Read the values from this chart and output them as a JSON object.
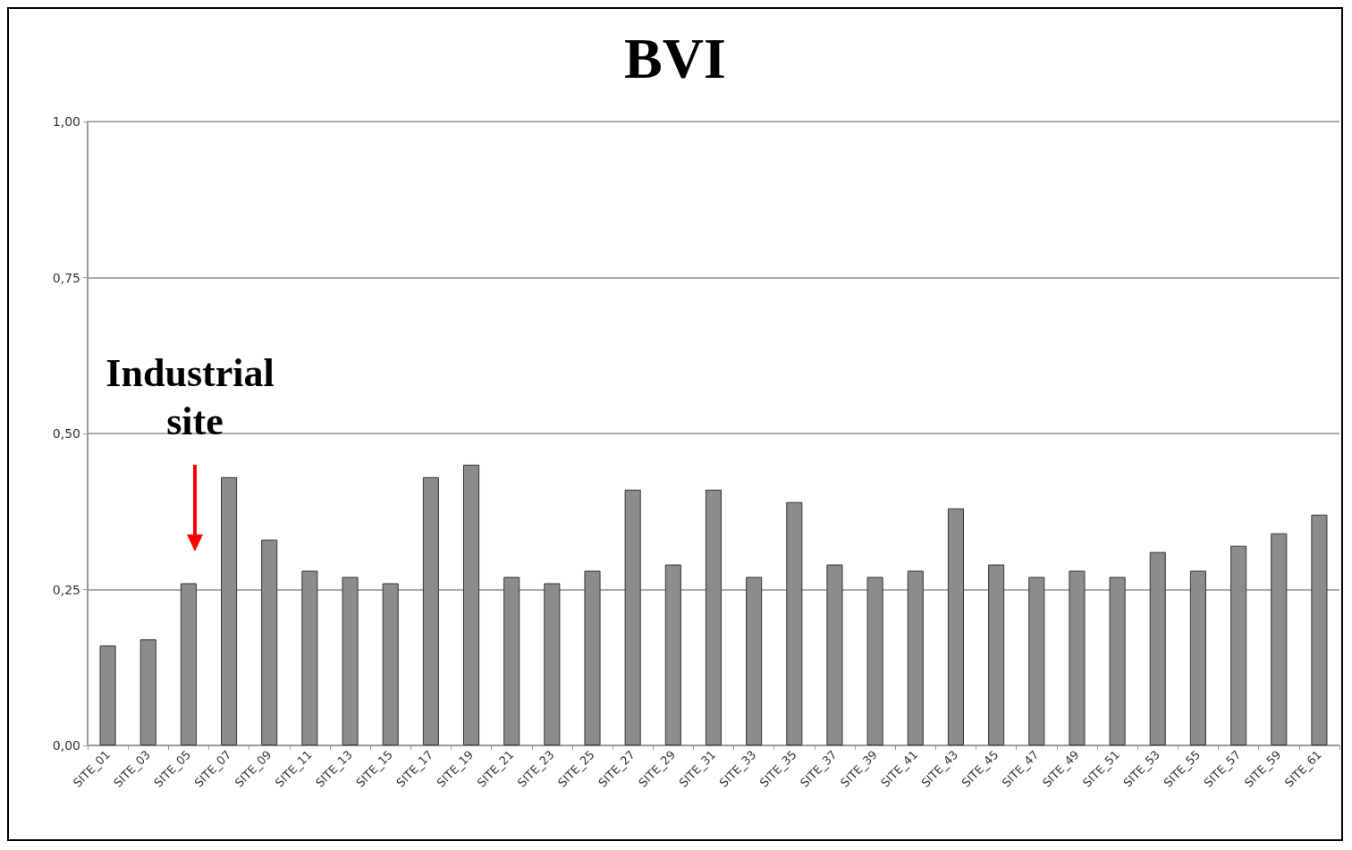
{
  "chart_data": {
    "type": "bar",
    "title": "BVI",
    "categories": [
      "SITE_01",
      "SITE_03",
      "SITE_05",
      "SITE_07",
      "SITE_09",
      "SITE_11",
      "SITE_13",
      "SITE_15",
      "SITE_17",
      "SITE_19",
      "SITE_21",
      "SITE_23",
      "SITE_25",
      "SITE_27",
      "SITE_29",
      "SITE_31",
      "SITE_33",
      "SITE_35",
      "SITE_37",
      "SITE_39",
      "SITE_41",
      "SITE_43",
      "SITE_45",
      "SITE_47",
      "SITE_49",
      "SITE_51",
      "SITE_53",
      "SITE_55",
      "SITE_57",
      "SITE_59",
      "SITE_61"
    ],
    "values": [
      0.16,
      0.17,
      0.26,
      0.43,
      0.33,
      0.28,
      0.27,
      0.26,
      0.43,
      0.45,
      0.27,
      0.26,
      0.28,
      0.41,
      0.29,
      0.41,
      0.27,
      0.39,
      0.29,
      0.27,
      0.28,
      0.38,
      0.29,
      0.27,
      0.28,
      0.27,
      0.31,
      0.28,
      0.32,
      0.34,
      0.37
    ],
    "color": "#8c8c8c",
    "ylim": [
      0,
      1
    ],
    "yticks": [
      {
        "value": 0,
        "label": "0,00"
      },
      {
        "value": 0.25,
        "label": "0,25"
      },
      {
        "value": 0.5,
        "label": "0,50"
      },
      {
        "value": 0.75,
        "label": "0,75"
      },
      {
        "value": 1,
        "label": "1,00"
      }
    ],
    "grid": "y",
    "annotations": [
      "Industrial site"
    ]
  }
}
